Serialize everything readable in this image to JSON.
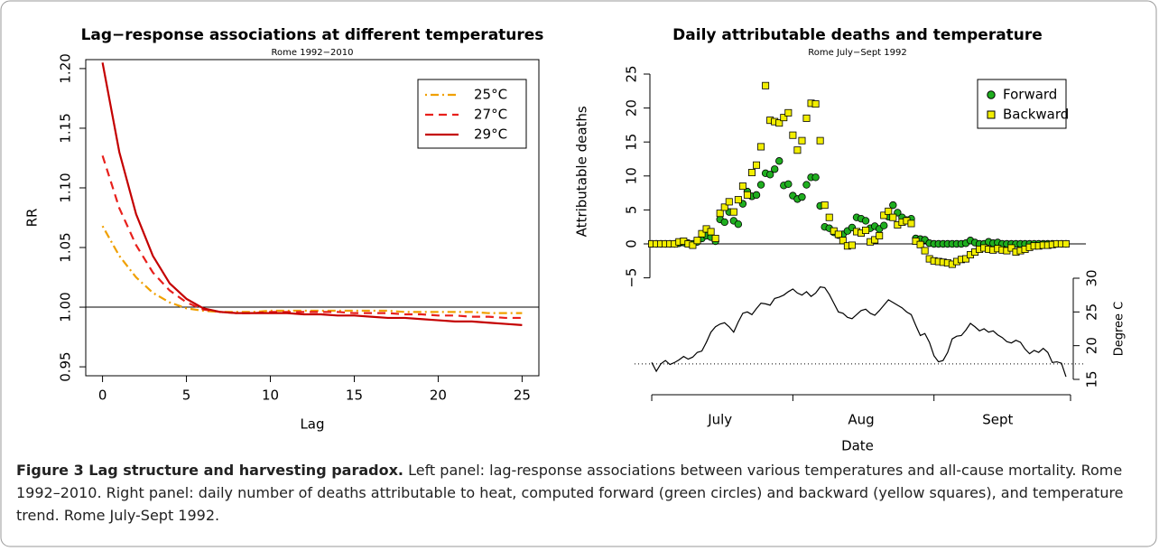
{
  "chart_data": [
    {
      "type": "line",
      "title": "Lag−response associations at different temperatures",
      "subtitle": "Rome 1992−2010",
      "xlabel": "Lag",
      "ylabel": "RR",
      "x": [
        0,
        1,
        2,
        3,
        4,
        5,
        6,
        7,
        8,
        9,
        10,
        11,
        12,
        13,
        14,
        15,
        16,
        17,
        18,
        19,
        20,
        21,
        22,
        23,
        24,
        25
      ],
      "xlim": [
        -1,
        26
      ],
      "xticks": [
        0,
        5,
        10,
        15,
        20,
        25
      ],
      "ylim": [
        0.9425,
        1.2075
      ],
      "yticks": [
        0.95,
        {
          "value": 1.0,
          "label": "1.00"
        },
        1.05,
        {
          "value": 1.1,
          "label": "1.10"
        },
        1.15,
        {
          "value": 1.2,
          "label": "1.20"
        }
      ],
      "hline": 1,
      "legend": "top-right",
      "series": [
        {
          "name": "25°C",
          "color": "#f0a000",
          "dash": "dotdash",
          "values": [
            1.068,
            1.043,
            1.025,
            1.012,
            1.004,
            0.999,
            0.997,
            0.996,
            0.996,
            0.996,
            0.997,
            0.997,
            0.997,
            0.997,
            0.997,
            0.997,
            0.997,
            0.997,
            0.996,
            0.996,
            0.996,
            0.996,
            0.996,
            0.995,
            0.995,
            0.995
          ]
        },
        {
          "name": "27°C",
          "color": "#e8201c",
          "dash": "dash",
          "values": [
            1.127,
            1.083,
            1.052,
            1.029,
            1.014,
            1.004,
            0.998,
            0.996,
            0.995,
            0.995,
            0.996,
            0.996,
            0.996,
            0.996,
            0.996,
            0.995,
            0.995,
            0.995,
            0.994,
            0.994,
            0.993,
            0.993,
            0.992,
            0.992,
            0.991,
            0.991
          ]
        },
        {
          "name": "29°C",
          "color": "#c40000",
          "dash": "solid",
          "values": [
            1.205,
            1.13,
            1.078,
            1.043,
            1.02,
            1.007,
            0.999,
            0.996,
            0.995,
            0.995,
            0.995,
            0.995,
            0.994,
            0.994,
            0.993,
            0.993,
            0.992,
            0.991,
            0.991,
            0.99,
            0.989,
            0.988,
            0.988,
            0.987,
            0.986,
            0.985
          ]
        }
      ]
    },
    {
      "type": "scatter",
      "title": "Daily attributable deaths and temperature",
      "subtitle": "Rome July−Sept 1992",
      "xlabel": "Date",
      "ylabel": "Attributable deaths",
      "y2label": "Degree C",
      "x": [
        1,
        2,
        3,
        4,
        5,
        6,
        7,
        8,
        9,
        10,
        11,
        12,
        13,
        14,
        15,
        16,
        17,
        18,
        19,
        20,
        21,
        22,
        23,
        24,
        25,
        26,
        27,
        28,
        29,
        30,
        31,
        32,
        33,
        34,
        35,
        36,
        37,
        38,
        39,
        40,
        41,
        42,
        43,
        44,
        45,
        46,
        47,
        48,
        49,
        50,
        51,
        52,
        53,
        54,
        55,
        56,
        57,
        58,
        59,
        60,
        61,
        62,
        63,
        64,
        65,
        66,
        67,
        68,
        69,
        70,
        71,
        72,
        73,
        74,
        75,
        76,
        77,
        78,
        79,
        80,
        81,
        82,
        83,
        84,
        85,
        86,
        87,
        88,
        89,
        90,
        91,
        92
      ],
      "xlim": [
        0,
        93
      ],
      "xticks": [
        {
          "value": 16,
          "label": "July"
        },
        {
          "value": 47,
          "label": "Aug"
        },
        {
          "value": 77,
          "label": "Sept"
        }
      ],
      "xbreaks": [
        1,
        32,
        63,
        93
      ],
      "ylim": [
        -5,
        25
      ],
      "yticks": [
        {
          "value": -5,
          "label": "−5"
        },
        0,
        5,
        10,
        15,
        20,
        25
      ],
      "y2lim": [
        15,
        30
      ],
      "y2ticks": [
        15,
        20,
        25,
        30
      ],
      "hline": 0,
      "y2hline": 17.3,
      "legend": "top-right",
      "series": [
        {
          "name": "Forward",
          "color": "#1fae1f",
          "marker": "circle",
          "values": [
            0,
            0,
            0,
            0,
            0,
            0,
            0.1,
            0.2,
            0.1,
            0,
            0.3,
            0.8,
            1.2,
            1.0,
            0.4,
            3.6,
            3.2,
            4.7,
            3.4,
            2.9,
            5.9,
            7.7,
            7.0,
            7.2,
            8.7,
            10.4,
            10.2,
            11.0,
            12.2,
            8.6,
            8.8,
            7.1,
            6.6,
            6.9,
            8.7,
            9.8,
            9.8,
            5.6,
            2.5,
            2.3,
            1.7,
            1.3,
            1.4,
            1.9,
            2.4,
            3.9,
            3.7,
            3.4,
            2.3,
            2.6,
            2.2,
            2.7,
            4.0,
            5.7,
            4.6,
            3.9,
            3.5,
            3.7,
            0.8,
            0.7,
            0.6,
            0.1,
            0,
            0,
            0,
            0,
            0,
            0,
            0,
            0.1,
            0.5,
            0.2,
            0,
            0,
            0.3,
            0.1,
            0.2,
            0,
            0,
            0,
            0,
            0,
            0,
            0,
            0,
            0,
            0,
            0,
            0,
            0,
            0,
            0
          ]
        },
        {
          "name": "Backward",
          "color": "#f2ee00",
          "marker": "square",
          "values": [
            0,
            0,
            0,
            0,
            0,
            0,
            0.3,
            0.4,
            0,
            -0.2,
            0.5,
            1.5,
            2.2,
            1.8,
            0.8,
            4.5,
            5.4,
            6.2,
            4.7,
            6.5,
            8.5,
            7.2,
            10.5,
            11.6,
            14.3,
            23.3,
            18.2,
            18.0,
            17.8,
            18.6,
            19.3,
            16.0,
            13.8,
            15.2,
            18.5,
            20.7,
            20.6,
            15.2,
            5.7,
            3.9,
            1.9,
            1.4,
            0.5,
            -0.3,
            -0.2,
            1.8,
            1.6,
            2.0,
            0.3,
            0.6,
            1.2,
            4.2,
            4.8,
            3.9,
            2.8,
            3.2,
            3.4,
            3.0,
            0.4,
            -0.1,
            -1.0,
            -2.2,
            -2.5,
            -2.6,
            -2.7,
            -2.8,
            -3.0,
            -2.6,
            -2.3,
            -2.2,
            -1.6,
            -1.2,
            -0.8,
            -0.6,
            -0.8,
            -0.9,
            -0.7,
            -0.9,
            -1.0,
            -0.6,
            -1.2,
            -1.0,
            -0.8,
            -0.5,
            -0.3,
            -0.3,
            -0.2,
            -0.2,
            -0.1,
            0,
            0,
            0
          ]
        },
        {
          "axis": "y2",
          "color": "#000000",
          "marker": "line",
          "values": [
            17.5,
            16.2,
            17.3,
            17.8,
            17.2,
            17.5,
            17.9,
            18.4,
            18.0,
            18.3,
            19.0,
            19.2,
            20.5,
            22.0,
            22.8,
            23.2,
            23.4,
            22.8,
            22.0,
            23.5,
            24.8,
            25.0,
            24.6,
            25.5,
            26.3,
            26.2,
            26.0,
            27.0,
            27.2,
            27.5,
            28.0,
            28.4,
            27.8,
            27.5,
            28.0,
            27.3,
            27.8,
            28.7,
            28.6,
            27.6,
            26.3,
            25.0,
            24.8,
            24.2,
            24.0,
            24.6,
            25.2,
            25.4,
            24.8,
            24.5,
            25.2,
            26.0,
            26.8,
            26.4,
            26.0,
            25.6,
            25.0,
            24.6,
            23.0,
            21.5,
            21.8,
            20.5,
            18.5,
            17.6,
            17.8,
            19.0,
            21.0,
            21.4,
            21.5,
            22.3,
            23.3,
            22.8,
            22.2,
            22.5,
            22.0,
            22.2,
            21.6,
            21.2,
            20.6,
            20.4,
            20.8,
            20.5,
            19.5,
            18.8,
            19.3,
            19.0,
            19.6,
            19.0,
            17.5,
            17.6,
            17.4,
            15.4
          ]
        }
      ]
    }
  ],
  "caption": {
    "label": "Figure 3 Lag structure and harvesting paradox.",
    "text": "Left panel: lag-response associations between various temperatures and all-cause mortality. Rome 1992–2010. Right panel: daily number of deaths attributable to heat, computed forward (green circles) and backward (yellow squares), and temperature trend. Rome July-Sept 1992."
  }
}
